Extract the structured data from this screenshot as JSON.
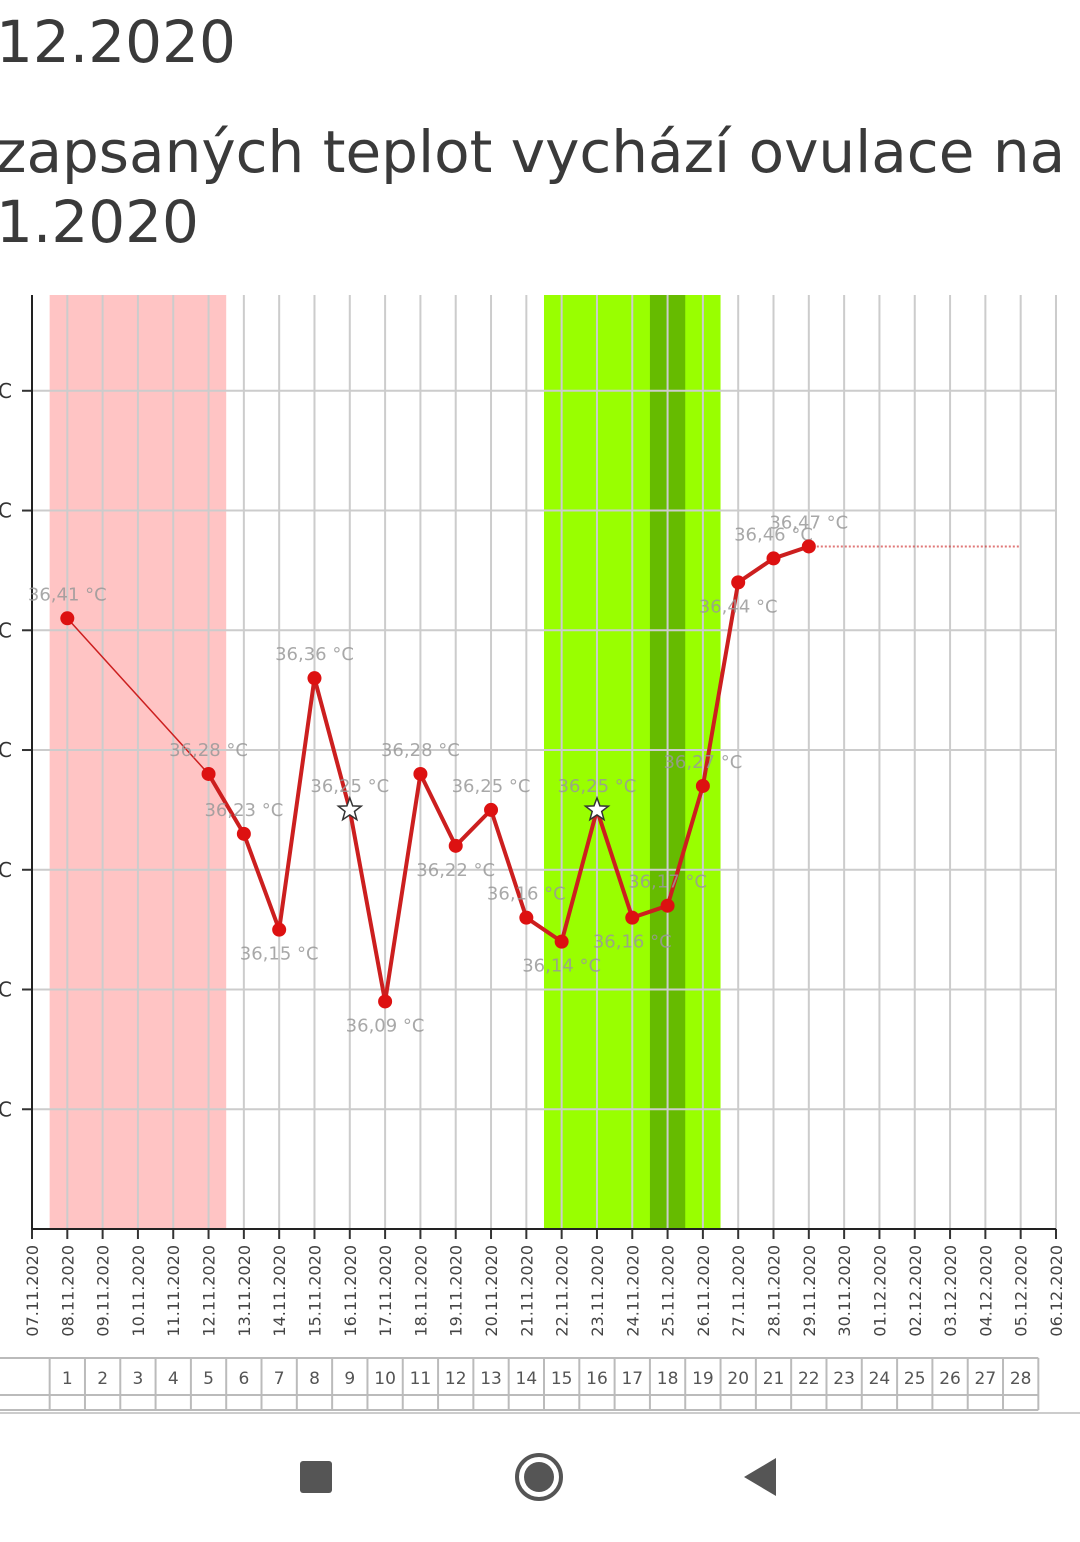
{
  "header": {
    "line1": "12.2020",
    "line2": "zapsaných teplot vychází ovulace na",
    "line3": "1.2020"
  },
  "chart_data": {
    "type": "line",
    "categories": [
      "07.11.2020",
      "08.11.2020",
      "09.11.2020",
      "10.11.2020",
      "11.11.2020",
      "12.11.2020",
      "13.11.2020",
      "14.11.2020",
      "15.11.2020",
      "16.11.2020",
      "17.11.2020",
      "18.11.2020",
      "19.11.2020",
      "20.11.2020",
      "21.11.2020",
      "22.11.2020",
      "23.11.2020",
      "24.11.2020",
      "25.11.2020",
      "26.11.2020",
      "27.11.2020",
      "28.11.2020",
      "29.11.2020",
      "30.11.2020",
      "01.12.2020",
      "02.12.2020",
      "03.12.2020",
      "04.12.2020",
      "05.12.2020",
      "06.12.2020"
    ],
    "series": [
      {
        "color": "#cc1f1f",
        "values": [
          null,
          36.41,
          null,
          null,
          null,
          36.28,
          36.23,
          36.15,
          36.36,
          36.25,
          36.09,
          36.28,
          36.22,
          36.25,
          36.16,
          36.14,
          36.25,
          36.16,
          36.17,
          36.27,
          36.44,
          36.46,
          36.47,
          null,
          null,
          null,
          null,
          null,
          null,
          null
        ],
        "value_labels": [
          null,
          "36,41 °C",
          null,
          null,
          null,
          "36,28 °C",
          "36,23 °C",
          "36,15 °C",
          "36,36 °C",
          "36,25 °C",
          "36,09 °C",
          "36,28 °C",
          "36,22 °C",
          "36,25 °C",
          "36,16 °C",
          "36,14 °C",
          "36,25 °C",
          "36,16 °C",
          "36,17 °C",
          "36,27 °C",
          "36,44 °C",
          "36,46 °C",
          "36,47 °C",
          null,
          null,
          null,
          null,
          null,
          null,
          null
        ]
      }
    ],
    "stars": [
      9,
      16
    ],
    "bands": [
      {
        "from": "08.11.2020",
        "to": "12.11.2020",
        "color": "#ffc4c4"
      },
      {
        "from": "22.11.2020",
        "to": "26.11.2020",
        "color": "#99ff00"
      },
      {
        "from": "25.11.2020",
        "to": "25.11.2020",
        "color": "#66bb00"
      }
    ],
    "ylim": [
      35.9,
      36.68
    ],
    "yticks": [
      {
        "value": 36.6,
        "label": "C"
      },
      {
        "value": 36.5,
        "label": "C"
      },
      {
        "value": 36.4,
        "label": "C"
      },
      {
        "value": 36.3,
        "label": "C"
      },
      {
        "value": 36.2,
        "label": "C"
      },
      {
        "value": 36.1,
        "label": "C"
      },
      {
        "value": 36.0,
        "label": "C"
      }
    ],
    "grid": true,
    "cycle_days": [
      1,
      2,
      3,
      4,
      5,
      6,
      7,
      8,
      9,
      10,
      11,
      12,
      13,
      14,
      15,
      16,
      17,
      18,
      19,
      20,
      21,
      22,
      23,
      24,
      25,
      26,
      27,
      28
    ]
  }
}
